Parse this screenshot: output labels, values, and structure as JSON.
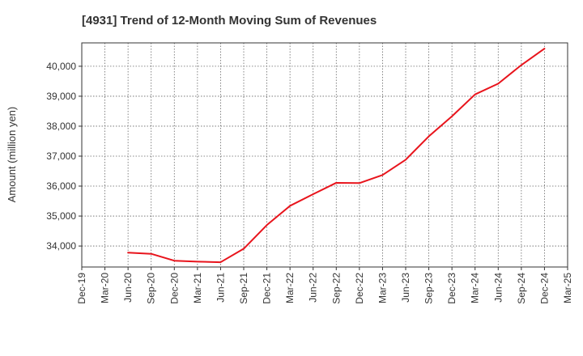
{
  "chart_data": {
    "type": "line",
    "title": "[4931]  Trend of 12-Month Moving Sum of Revenues",
    "xlabel": "",
    "ylabel": "Amount (million yen)",
    "x_tick_labels": [
      "Dec-19",
      "Mar-20",
      "Jun-20",
      "Sep-20",
      "Dec-20",
      "Mar-21",
      "Jun-21",
      "Sep-21",
      "Dec-21",
      "Mar-22",
      "Jun-22",
      "Sep-22",
      "Dec-22",
      "Mar-23",
      "Jun-23",
      "Sep-23",
      "Dec-23",
      "Mar-24",
      "Jun-24",
      "Sep-24",
      "Dec-24",
      "Mar-25"
    ],
    "y_tick_labels": [
      "34,000",
      "35,000",
      "36,000",
      "37,000",
      "38,000",
      "39,000",
      "40,000"
    ],
    "y_ticks": [
      34000,
      35000,
      36000,
      37000,
      38000,
      39000,
      40000
    ],
    "ylim": [
      33300,
      40780
    ],
    "grid": true,
    "series": [
      {
        "color": "#e8141c",
        "x": [
          "Jun-20",
          "Sep-20",
          "Dec-20",
          "Mar-21",
          "Jun-21",
          "Sep-21",
          "Dec-21",
          "Mar-22",
          "Jun-22",
          "Sep-22",
          "Dec-22",
          "Mar-23",
          "Jun-23",
          "Sep-23",
          "Dec-23",
          "Mar-24",
          "Jun-24",
          "Sep-24",
          "Dec-24"
        ],
        "values": [
          33780,
          33740,
          33510,
          33480,
          33460,
          33910,
          34700,
          35340,
          35730,
          36110,
          36100,
          36370,
          36880,
          37660,
          38330,
          39060,
          39420,
          40040,
          40590
        ]
      }
    ]
  }
}
